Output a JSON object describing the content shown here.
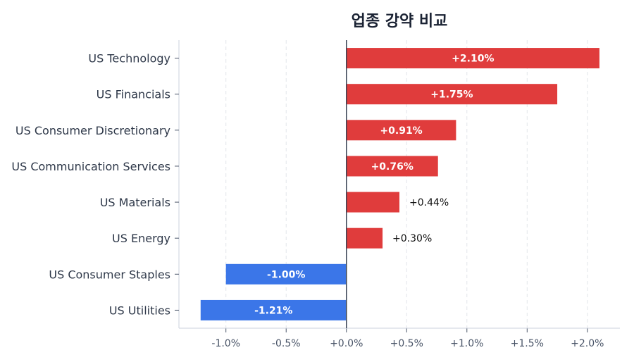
{
  "chart_data": {
    "type": "bar",
    "orientation": "horizontal",
    "title": "업종 강약 비교",
    "categories": [
      "US Technology",
      "US Financials",
      "US Consumer Discretionary",
      "US Communication Services",
      "US Materials",
      "US Energy",
      "US Consumer Staples",
      "US Utilities"
    ],
    "values": [
      2.1,
      1.75,
      0.91,
      0.76,
      0.44,
      0.3,
      -1.0,
      -1.21
    ],
    "data_labels": [
      "+2.10%",
      "+1.75%",
      "+0.91%",
      "+0.76%",
      "+0.44%",
      "+0.30%",
      "-1.00%",
      "-1.21%"
    ],
    "xlim": [
      -1.39,
      2.27
    ],
    "xticks": [
      -1.0,
      -0.5,
      0.0,
      0.5,
      1.0,
      1.5,
      2.0
    ],
    "xtick_labels": [
      "-1.0%",
      "-0.5%",
      "+0.0%",
      "+0.5%",
      "+1.0%",
      "+1.5%",
      "+2.0%"
    ],
    "xlabel": "",
    "ylabel": "",
    "grid": "vertical dashed",
    "colors": {
      "positive": "#e03c3c",
      "negative": "#3b76e8",
      "zero_line": "#3a4556"
    }
  }
}
